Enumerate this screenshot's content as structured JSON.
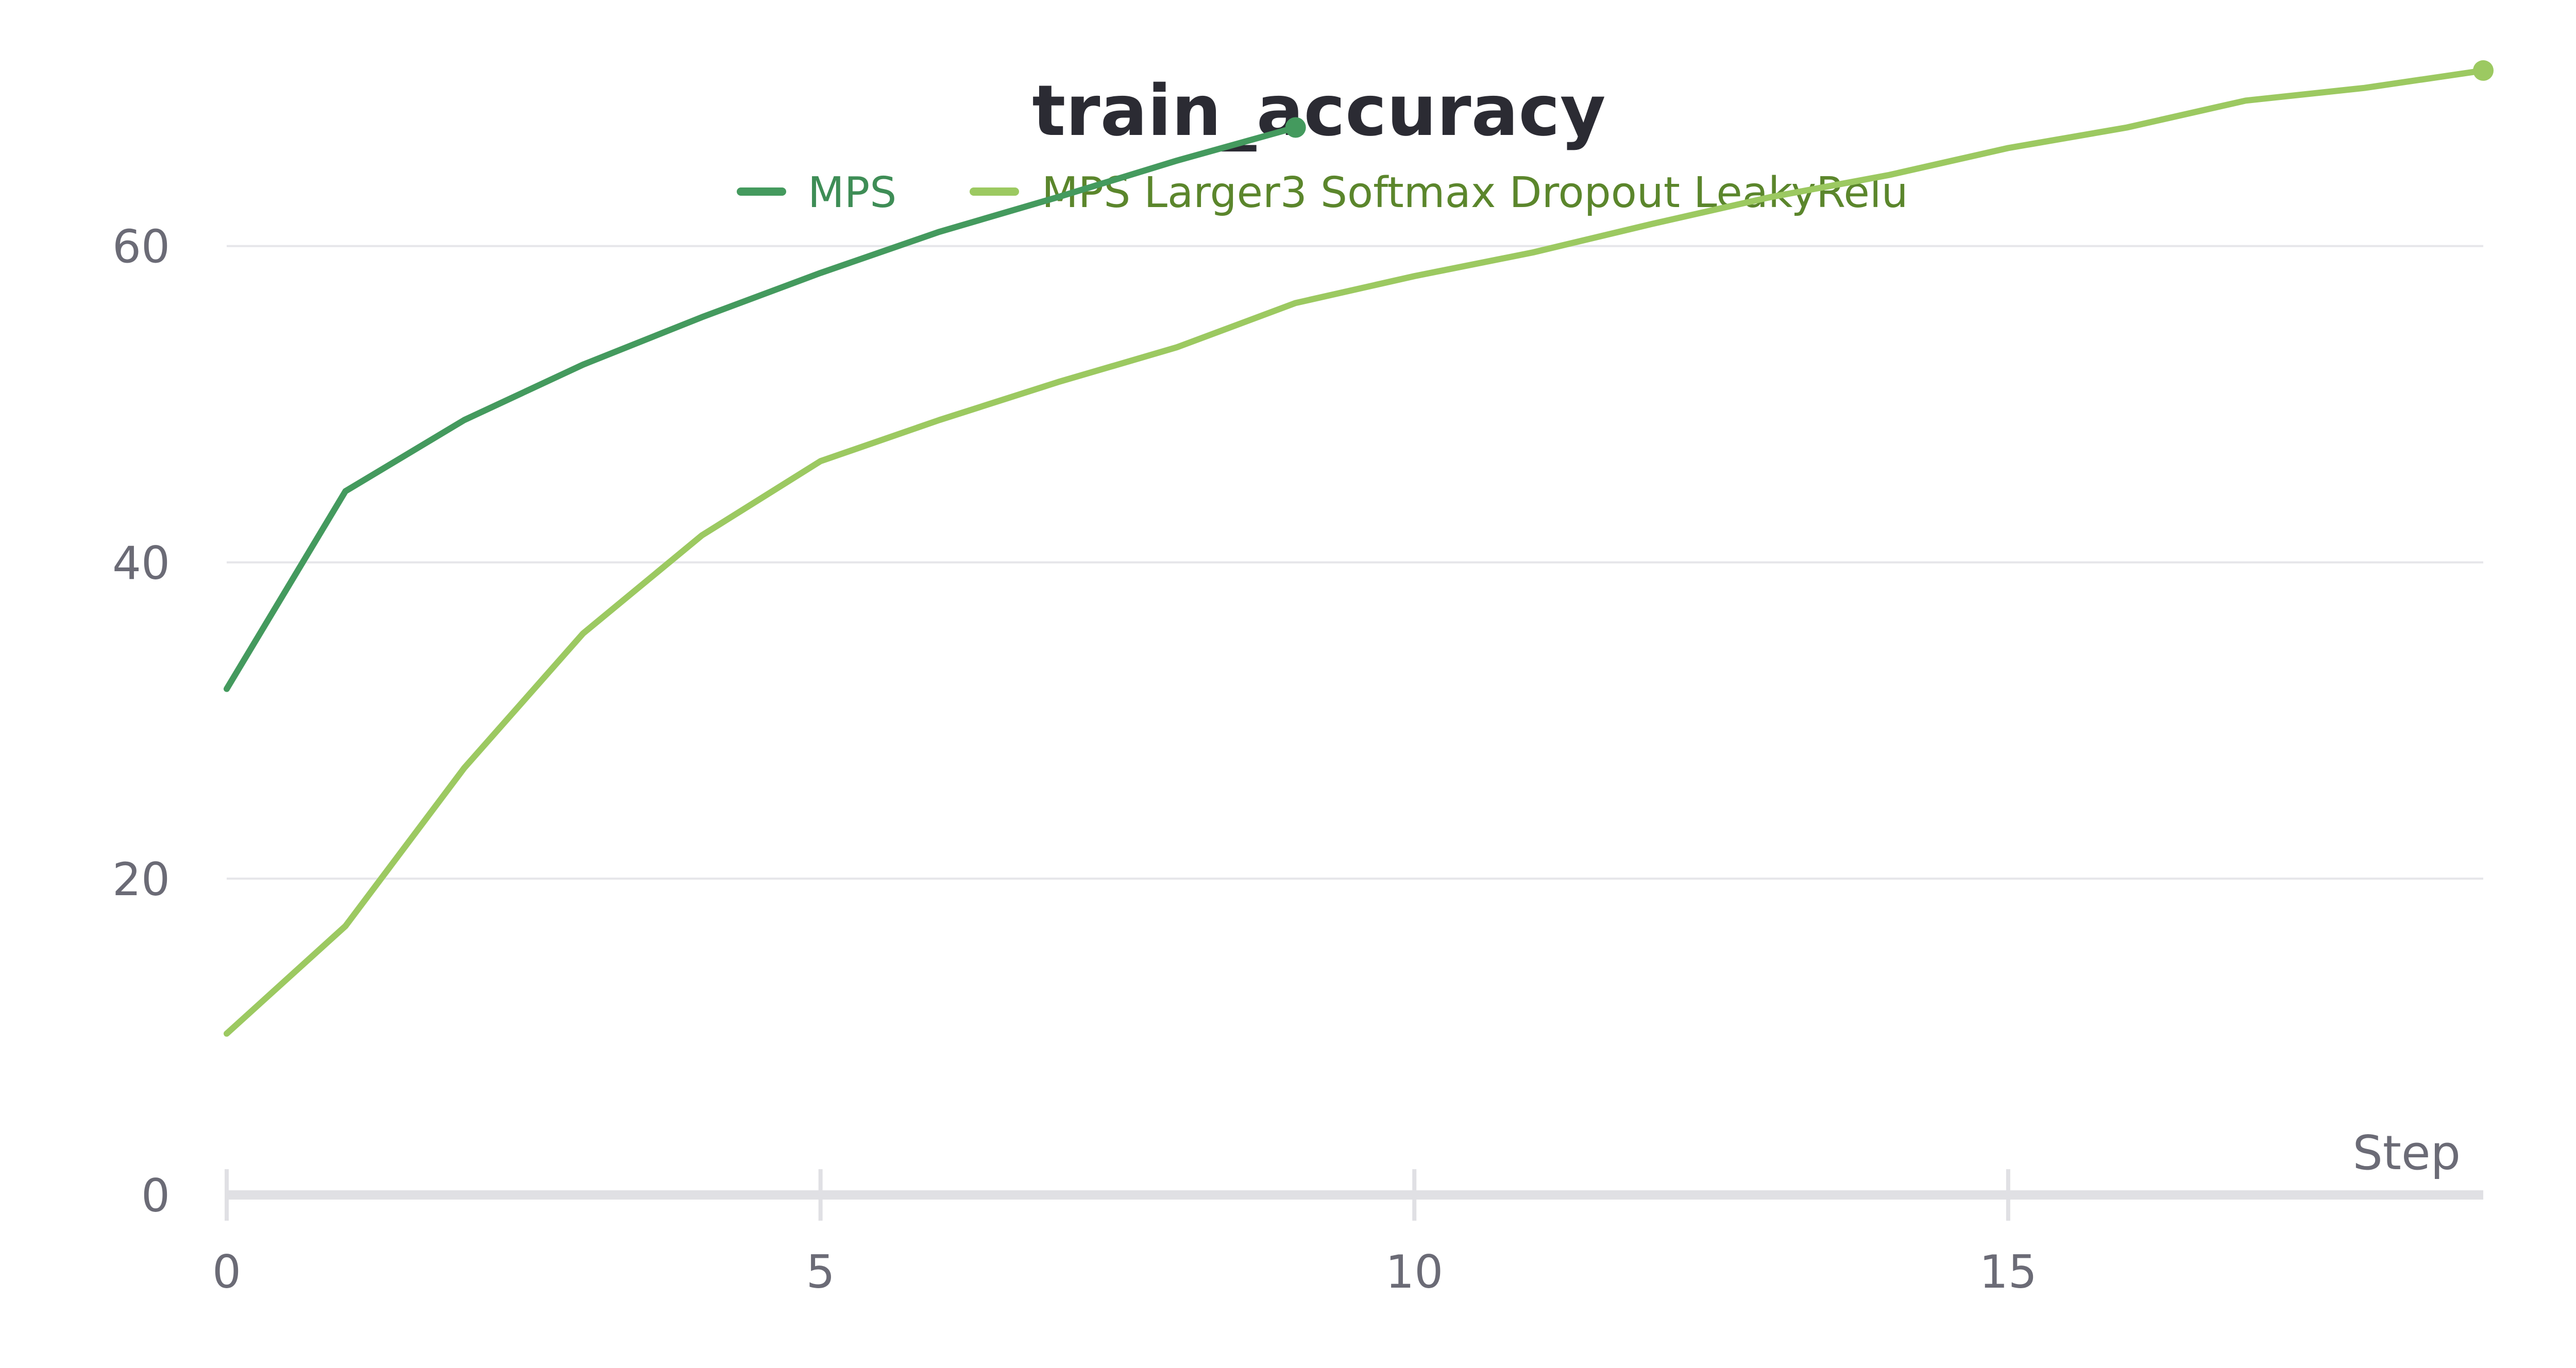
{
  "chart_data": {
    "type": "line",
    "title": "train_accuracy",
    "xlabel": "Step",
    "ylabel": "",
    "xlim": [
      0,
      19
    ],
    "ylim": [
      0,
      71
    ],
    "xticks": [
      0,
      5,
      10,
      15
    ],
    "yticks": [
      0,
      20,
      40,
      60
    ],
    "grid": true,
    "legend_position": "top-center",
    "series": [
      {
        "name": "MPS",
        "color": "#449a5e",
        "label_color": "#3e8d56",
        "x": [
          0,
          1,
          2,
          3,
          4,
          5,
          6,
          7,
          8,
          9
        ],
        "y": [
          32,
          44.5,
          49,
          52.5,
          55.5,
          58.3,
          60.9,
          63.1,
          65.4,
          67.5
        ]
      },
      {
        "name": "MPS Larger3 Softmax Dropout LeakyRelu",
        "color": "#9cc961",
        "label_color": "#5b862c",
        "x": [
          0,
          1,
          2,
          3,
          4,
          5,
          6,
          7,
          8,
          9,
          10,
          11,
          12,
          13,
          14,
          15,
          16,
          17,
          18,
          19
        ],
        "y": [
          10.2,
          17,
          27,
          35.5,
          41.7,
          46.4,
          49,
          51.4,
          53.6,
          56.4,
          58.1,
          59.6,
          61.4,
          63.1,
          64.5,
          66.2,
          67.5,
          69.2,
          70,
          71.1
        ]
      }
    ]
  }
}
